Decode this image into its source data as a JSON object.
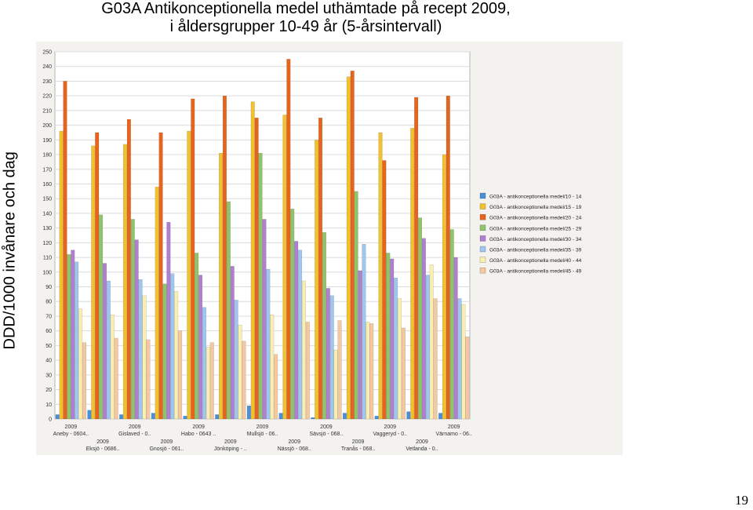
{
  "title_line1": "G03A Antikonceptionella medel uthämtade på recept 2009,",
  "title_line2": "i åldersgrupper 10-49 år (5-årsintervall)",
  "page_number": "19",
  "chart_data": {
    "type": "bar",
    "ylabel": "DDD/1000 invånare och dag",
    "xlabel": "",
    "ylim": [
      0,
      250
    ],
    "yticks": [
      0,
      10,
      20,
      30,
      40,
      50,
      60,
      70,
      80,
      90,
      100,
      110,
      120,
      130,
      140,
      150,
      160,
      170,
      180,
      190,
      200,
      210,
      220,
      230,
      240,
      250
    ],
    "grid": true,
    "legend_position": "right",
    "categories": [
      {
        "year": "2009",
        "name": "Aneby - 0604.."
      },
      {
        "year": "2009",
        "name": "Eksjö - 0686.."
      },
      {
        "year": "2009",
        "name": "Gislaved - 0.."
      },
      {
        "year": "2009",
        "name": "Gnosjö - 061.."
      },
      {
        "year": "2009",
        "name": "Habo - 0643 .."
      },
      {
        "year": "2009",
        "name": "Jönköping - .."
      },
      {
        "year": "2009",
        "name": "Mullsjö - 06.."
      },
      {
        "year": "2009",
        "name": "Nässjö - 068.."
      },
      {
        "year": "2009",
        "name": "Sävsjö - 068.."
      },
      {
        "year": "2009",
        "name": "Tranås - 068.."
      },
      {
        "year": "2009",
        "name": "Vaggeryd - 0.."
      },
      {
        "year": "2009",
        "name": "Vetlanda - 0.."
      },
      {
        "year": "2009",
        "name": "Värnamo - 06.."
      }
    ],
    "series": [
      {
        "name": "G03A - antikonceptionella medel/10 - 14",
        "color": "#4a90d9",
        "values": [
          3,
          6,
          3,
          4,
          2,
          3,
          9,
          4,
          1,
          4,
          2,
          5,
          4
        ]
      },
      {
        "name": "G03A - antikonceptionella medel/15 - 19",
        "color": "#f2c12e",
        "values": [
          196,
          186,
          187,
          158,
          196,
          181,
          216,
          207,
          190,
          233,
          195,
          198,
          180
        ]
      },
      {
        "name": "G03A - antikonceptionella medel/20 - 24",
        "color": "#e8641c",
        "values": [
          230,
          195,
          204,
          195,
          218,
          220,
          205,
          245,
          205,
          237,
          176,
          219,
          220
        ]
      },
      {
        "name": "G03A - antikonceptionella medel/25 - 29",
        "color": "#8fc46a",
        "values": [
          112,
          139,
          136,
          92,
          113,
          148,
          181,
          143,
          127,
          155,
          113,
          137,
          129
        ]
      },
      {
        "name": "G03A - antikonceptionella medel/30 - 34",
        "color": "#b07fcf",
        "values": [
          115,
          106,
          122,
          134,
          98,
          104,
          136,
          121,
          89,
          101,
          109,
          123,
          110
        ]
      },
      {
        "name": "G03A - antikonceptionella medel/35 - 39",
        "color": "#9fc6ef",
        "values": [
          107,
          94,
          95,
          99,
          76,
          81,
          102,
          115,
          84,
          119,
          96,
          98,
          82
        ]
      },
      {
        "name": "G03A - antikonceptionella medel/40 - 44",
        "color": "#f8efb0",
        "values": [
          75,
          71,
          84,
          87,
          49,
          64,
          71,
          94,
          47,
          66,
          82,
          105,
          78
        ]
      },
      {
        "name": "G03A - antikonceptionella medel/45 - 49",
        "color": "#f6c8a2",
        "values": [
          52,
          55,
          54,
          60,
          52,
          53,
          44,
          66,
          67,
          65,
          62,
          82,
          56
        ]
      }
    ]
  }
}
